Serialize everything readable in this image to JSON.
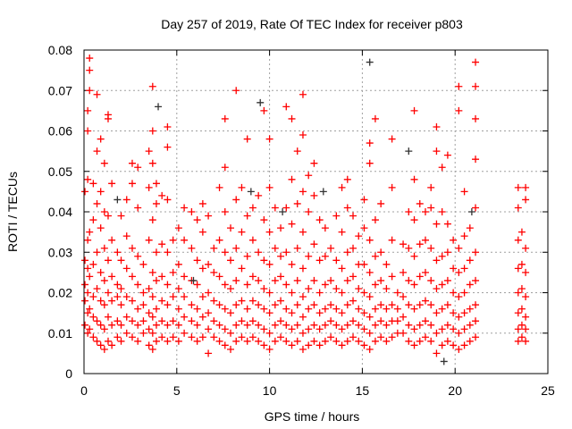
{
  "chart_data": {
    "type": "scatter",
    "title": "Day 257 of 2019, Rate Of TEC Index for receiver p803",
    "xlabel": "GPS time / hours",
    "ylabel": "ROTI / TECUs",
    "xlim": [
      0,
      25
    ],
    "ylim": [
      0,
      0.08
    ],
    "xticks": [
      "0",
      "5",
      "10",
      "15",
      "20",
      "25"
    ],
    "yticks": [
      "0",
      "0.01",
      "0.02",
      "0.03",
      "0.04",
      "0.05",
      "0.06",
      "0.07",
      "0.08"
    ],
    "grid": true,
    "marker": "plus",
    "series": [
      {
        "name": "red",
        "color": "#ff0000",
        "columns": [
          {
            "x": 0.05,
            "ys": [
              0.012,
              0.018,
              0.022,
              0.028,
              0.045
            ]
          },
          {
            "x": 0.2,
            "ys": [
              0.01,
              0.015,
              0.02,
              0.026,
              0.033,
              0.048,
              0.06,
              0.065
            ]
          },
          {
            "x": 0.3,
            "ys": [
              0.011,
              0.016,
              0.024,
              0.035,
              0.07,
              0.075,
              0.078
            ]
          },
          {
            "x": 0.5,
            "ys": [
              0.009,
              0.014,
              0.019,
              0.027,
              0.038,
              0.047
            ]
          },
          {
            "x": 0.7,
            "ys": [
              0.008,
              0.013,
              0.021,
              0.03,
              0.042,
              0.055,
              0.069
            ]
          },
          {
            "x": 0.9,
            "ys": [
              0.007,
              0.012,
              0.018,
              0.025,
              0.036,
              0.045,
              0.058
            ]
          },
          {
            "x": 1.1,
            "ys": [
              0.006,
              0.011,
              0.017,
              0.023,
              0.031,
              0.04,
              0.052
            ]
          },
          {
            "x": 1.3,
            "ys": [
              0.008,
              0.014,
              0.02,
              0.028,
              0.039,
              0.064,
              0.063
            ]
          },
          {
            "x": 1.5,
            "ys": [
              0.007,
              0.012,
              0.018,
              0.024,
              0.033,
              0.047
            ]
          },
          {
            "x": 1.8,
            "ys": [
              0.009,
              0.013,
              0.019,
              0.022,
              0.03
            ]
          },
          {
            "x": 2.0,
            "ys": [
              0.008,
              0.012,
              0.017,
              0.021,
              0.028,
              0.039
            ]
          },
          {
            "x": 2.3,
            "ys": [
              0.01,
              0.014,
              0.019,
              0.026,
              0.034,
              0.043
            ]
          },
          {
            "x": 2.6,
            "ys": [
              0.009,
              0.013,
              0.018,
              0.024,
              0.031,
              0.047,
              0.052
            ]
          },
          {
            "x": 2.9,
            "ys": [
              0.008,
              0.012,
              0.016,
              0.022,
              0.029,
              0.041,
              0.051
            ]
          },
          {
            "x": 3.2,
            "ys": [
              0.01,
              0.013,
              0.017,
              0.02,
              0.027
            ]
          },
          {
            "x": 3.5,
            "ys": [
              0.007,
              0.011,
              0.015,
              0.021,
              0.033,
              0.046,
              0.055
            ]
          },
          {
            "x": 3.7,
            "ys": [
              0.006,
              0.01,
              0.014,
              0.019,
              0.025,
              0.038,
              0.052,
              0.06,
              0.071
            ]
          },
          {
            "x": 3.9,
            "ys": [
              0.008,
              0.012,
              0.016,
              0.023,
              0.03,
              0.042,
              0.047
            ]
          },
          {
            "x": 4.2,
            "ys": [
              0.009,
              0.013,
              0.018,
              0.024,
              0.032,
              0.044
            ]
          },
          {
            "x": 4.5,
            "ys": [
              0.008,
              0.012,
              0.017,
              0.022,
              0.03,
              0.043,
              0.056,
              0.061
            ]
          },
          {
            "x": 4.8,
            "ys": [
              0.009,
              0.013,
              0.019,
              0.025,
              0.033
            ]
          },
          {
            "x": 5.1,
            "ys": [
              0.008,
              0.012,
              0.016,
              0.021,
              0.027,
              0.036
            ]
          },
          {
            "x": 5.4,
            "ys": [
              0.01,
              0.014,
              0.019,
              0.024,
              0.033,
              0.041
            ]
          },
          {
            "x": 5.8,
            "ys": [
              0.009,
              0.013,
              0.017,
              0.023,
              0.031,
              0.04
            ]
          },
          {
            "x": 6.1,
            "ys": [
              0.008,
              0.012,
              0.016,
              0.022,
              0.028,
              0.038
            ]
          },
          {
            "x": 6.4,
            "ys": [
              0.009,
              0.014,
              0.019,
              0.026,
              0.035,
              0.042
            ]
          },
          {
            "x": 6.7,
            "ys": [
              0.005,
              0.011,
              0.015,
              0.02,
              0.027,
              0.039
            ]
          },
          {
            "x": 7.0,
            "ys": [
              0.009,
              0.013,
              0.018,
              0.025,
              0.031
            ]
          },
          {
            "x": 7.3,
            "ys": [
              0.008,
              0.012,
              0.017,
              0.024,
              0.033,
              0.046
            ]
          },
          {
            "x": 7.6,
            "ys": [
              0.007,
              0.011,
              0.016,
              0.022,
              0.03,
              0.04,
              0.051,
              0.063
            ]
          },
          {
            "x": 7.9,
            "ys": [
              0.006,
              0.01,
              0.015,
              0.021,
              0.028,
              0.036
            ]
          },
          {
            "x": 8.2,
            "ys": [
              0.008,
              0.012,
              0.017,
              0.023,
              0.031,
              0.043,
              0.07
            ]
          },
          {
            "x": 8.5,
            "ys": [
              0.009,
              0.013,
              0.018,
              0.026,
              0.035,
              0.046
            ]
          },
          {
            "x": 8.8,
            "ys": [
              0.008,
              0.012,
              0.016,
              0.022,
              0.029,
              0.039,
              0.058
            ]
          },
          {
            "x": 9.1,
            "ys": [
              0.009,
              0.013,
              0.018,
              0.024,
              0.033,
              0.041
            ]
          },
          {
            "x": 9.4,
            "ys": [
              0.008,
              0.012,
              0.017,
              0.023,
              0.03,
              0.044
            ]
          },
          {
            "x": 9.7,
            "ys": [
              0.007,
              0.011,
              0.016,
              0.021,
              0.028,
              0.038,
              0.065
            ]
          },
          {
            "x": 10.0,
            "ys": [
              0.006,
              0.01,
              0.015,
              0.02,
              0.027,
              0.035,
              0.046,
              0.058
            ]
          },
          {
            "x": 10.3,
            "ys": [
              0.008,
              0.012,
              0.017,
              0.023,
              0.031,
              0.041
            ]
          },
          {
            "x": 10.6,
            "ys": [
              0.009,
              0.013,
              0.018,
              0.024,
              0.029,
              0.036
            ]
          },
          {
            "x": 10.9,
            "ys": [
              0.008,
              0.012,
              0.016,
              0.022,
              0.03,
              0.041,
              0.066
            ]
          },
          {
            "x": 11.2,
            "ys": [
              0.007,
              0.011,
              0.015,
              0.02,
              0.027,
              0.037,
              0.048,
              0.063
            ]
          },
          {
            "x": 11.5,
            "ys": [
              0.008,
              0.012,
              0.017,
              0.023,
              0.031,
              0.042,
              0.055
            ]
          },
          {
            "x": 11.8,
            "ys": [
              0.006,
              0.01,
              0.014,
              0.019,
              0.026,
              0.035,
              0.045,
              0.059,
              0.069
            ]
          },
          {
            "x": 12.1,
            "ys": [
              0.007,
              0.011,
              0.016,
              0.021,
              0.029,
              0.04,
              0.049
            ]
          },
          {
            "x": 12.4,
            "ys": [
              0.008,
              0.012,
              0.017,
              0.023,
              0.032,
              0.044,
              0.052
            ]
          },
          {
            "x": 12.7,
            "ys": [
              0.007,
              0.011,
              0.015,
              0.02,
              0.028,
              0.038
            ]
          },
          {
            "x": 13.0,
            "ys": [
              0.008,
              0.012,
              0.016,
              0.022,
              0.029,
              0.036
            ]
          },
          {
            "x": 13.3,
            "ys": [
              0.009,
              0.013,
              0.017,
              0.023,
              0.031
            ]
          },
          {
            "x": 13.6,
            "ys": [
              0.008,
              0.012,
              0.016,
              0.021,
              0.028,
              0.039
            ]
          },
          {
            "x": 13.9,
            "ys": [
              0.007,
              0.011,
              0.015,
              0.02,
              0.026,
              0.035,
              0.046
            ]
          },
          {
            "x": 14.2,
            "ys": [
              0.008,
              0.012,
              0.017,
              0.023,
              0.03,
              0.041,
              0.048
            ]
          },
          {
            "x": 14.5,
            "ys": [
              0.009,
              0.013,
              0.018,
              0.024,
              0.031,
              0.039
            ]
          },
          {
            "x": 14.8,
            "ys": [
              0.008,
              0.012,
              0.016,
              0.021,
              0.027,
              0.034
            ]
          },
          {
            "x": 15.1,
            "ys": [
              0.007,
              0.011,
              0.015,
              0.02,
              0.027,
              0.036,
              0.043
            ]
          },
          {
            "x": 15.4,
            "ys": [
              0.006,
              0.01,
              0.014,
              0.019,
              0.025,
              0.033,
              0.052,
              0.057
            ]
          },
          {
            "x": 15.7,
            "ys": [
              0.008,
              0.012,
              0.016,
              0.022,
              0.029,
              0.038,
              0.063
            ]
          },
          {
            "x": 16.0,
            "ys": [
              0.009,
              0.013,
              0.017,
              0.023,
              0.03,
              0.042
            ]
          },
          {
            "x": 16.3,
            "ys": [
              0.008,
              0.012,
              0.016,
              0.021,
              0.027
            ]
          },
          {
            "x": 16.6,
            "ys": [
              0.009,
              0.013,
              0.017,
              0.024,
              0.033,
              0.046,
              0.058
            ]
          },
          {
            "x": 16.9,
            "ys": [
              0.01,
              0.013,
              0.016,
              0.02
            ]
          },
          {
            "x": 17.2,
            "ys": [
              0.01,
              0.014,
              0.019,
              0.025,
              0.032
            ]
          },
          {
            "x": 17.5,
            "ys": [
              0.008,
              0.012,
              0.017,
              0.023,
              0.031,
              0.04
            ]
          },
          {
            "x": 17.8,
            "ys": [
              0.007,
              0.011,
              0.016,
              0.022,
              0.029,
              0.038,
              0.048,
              0.065
            ]
          },
          {
            "x": 18.1,
            "ys": [
              0.008,
              0.012,
              0.017,
              0.024,
              0.032,
              0.042
            ]
          },
          {
            "x": 18.4,
            "ys": [
              0.009,
              0.013,
              0.018,
              0.025,
              0.033,
              0.04
            ]
          },
          {
            "x": 18.7,
            "ys": [
              0.008,
              0.012,
              0.017,
              0.023,
              0.031,
              0.041,
              0.046
            ]
          },
          {
            "x": 19.0,
            "ys": [
              0.005,
              0.01,
              0.015,
              0.021,
              0.028,
              0.037,
              0.055,
              0.061
            ]
          },
          {
            "x": 19.3,
            "ys": [
              0.007,
              0.011,
              0.016,
              0.022,
              0.029,
              0.04,
              0.051
            ]
          },
          {
            "x": 19.6,
            "ys": [
              0.008,
              0.012,
              0.017,
              0.023,
              0.03,
              0.037,
              0.054
            ]
          },
          {
            "x": 19.9,
            "ys": [
              0.007,
              0.011,
              0.015,
              0.02,
              0.026,
              0.033
            ]
          },
          {
            "x": 20.2,
            "ys": [
              0.006,
              0.01,
              0.014,
              0.019,
              0.025,
              0.031,
              0.065,
              0.071
            ]
          },
          {
            "x": 20.5,
            "ys": [
              0.007,
              0.011,
              0.015,
              0.02,
              0.026,
              0.034,
              0.045
            ]
          },
          {
            "x": 20.8,
            "ys": [
              0.008,
              0.012,
              0.016,
              0.022,
              0.028,
              0.036
            ]
          },
          {
            "x": 21.1,
            "ys": [
              0.009,
              0.013,
              0.017,
              0.023,
              0.03,
              0.041,
              0.053,
              0.063,
              0.071,
              0.077
            ]
          },
          {
            "x": 23.4,
            "ys": [
              0.008,
              0.011,
              0.015,
              0.02,
              0.026,
              0.033,
              0.041,
              0.046
            ]
          },
          {
            "x": 23.6,
            "ys": [
              0.009,
              0.012,
              0.016,
              0.021,
              0.027,
              0.035
            ]
          },
          {
            "x": 23.8,
            "ys": [
              0.008,
              0.011,
              0.014,
              0.019,
              0.025,
              0.031,
              0.043,
              0.046
            ]
          }
        ]
      },
      {
        "name": "dark",
        "color": "#333333",
        "columns": [
          {
            "x": 15.4,
            "ys": [
              0.077
            ]
          },
          {
            "x": 9.5,
            "ys": [
              0.067
            ]
          },
          {
            "x": 17.5,
            "ys": [
              0.055
            ]
          },
          {
            "x": 9.0,
            "ys": [
              0.045
            ]
          },
          {
            "x": 12.9,
            "ys": [
              0.045
            ]
          },
          {
            "x": 4.0,
            "ys": [
              0.066
            ]
          },
          {
            "x": 19.4,
            "ys": [
              0.003
            ]
          },
          {
            "x": 20.9,
            "ys": [
              0.04
            ]
          },
          {
            "x": 1.8,
            "ys": [
              0.043
            ]
          },
          {
            "x": 5.9,
            "ys": [
              0.023
            ]
          },
          {
            "x": 10.7,
            "ys": [
              0.04
            ]
          }
        ]
      }
    ]
  }
}
